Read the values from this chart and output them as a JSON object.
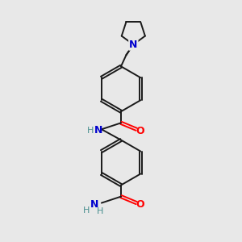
{
  "bg_color": "#e8e8e8",
  "bond_color": "#1a1a1a",
  "N_color": "#0000cd",
  "O_color": "#ff0000",
  "H_color": "#4a9090",
  "figsize": [
    3.0,
    3.0
  ],
  "dpi": 100,
  "xlim": [
    0,
    10
  ],
  "ylim": [
    0,
    10
  ],
  "lw": 1.4,
  "ring_r": 0.95
}
